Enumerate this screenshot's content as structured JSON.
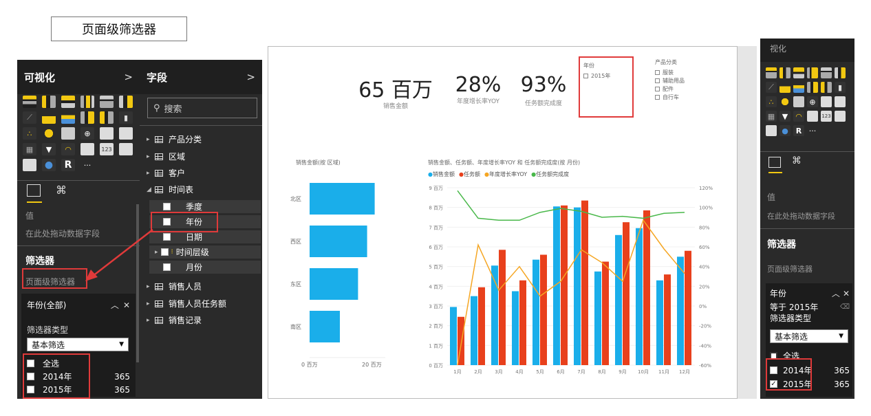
{
  "page_title": "页面级筛选器",
  "viz_panel": {
    "title": "可视化",
    "chevron": ">",
    "value_label": "值",
    "drop_hint": "在此处拖动数据字段",
    "filters_title": "筛选器",
    "page_filter_label": "页面级筛选器",
    "filter_card": {
      "title": "年份(全部)",
      "type_label": "筛选器类型",
      "type_value": "基本筛选",
      "items": [
        {
          "label": "全选",
          "count": ""
        },
        {
          "label": "2014年",
          "count": "365"
        },
        {
          "label": "2015年",
          "count": "365"
        }
      ]
    }
  },
  "fields_panel": {
    "title": "字段",
    "chevron": ">",
    "search_placeholder": "搜索",
    "tables": [
      "产品分类",
      "区域",
      "客户",
      "时间表"
    ],
    "time_fields": [
      "季度",
      "年份",
      "日期",
      "时间层级",
      "月份"
    ],
    "tables_after": [
      "销售人员",
      "销售人员任务额",
      "销售记录"
    ]
  },
  "report": {
    "kpis": [
      {
        "value": "65 百万",
        "label": "销售金额"
      },
      {
        "value": "28%",
        "label": "年度增长率YOY"
      },
      {
        "value": "93%",
        "label": "任务额完成度"
      }
    ],
    "year_slicer": {
      "title": "年份",
      "items": [
        "2015年"
      ]
    },
    "category_slicer": {
      "title": "产品分类",
      "items": [
        "服装",
        "辅助用品",
        "配件",
        "自行车"
      ]
    },
    "bar_title": "销售金额(按 区域)",
    "combo_title": "销售金额、任务额、年度增长率YOY 和 任务额完成度(按 月份)",
    "legend": [
      {
        "name": "销售金额",
        "color": "#1aaeea"
      },
      {
        "name": "任务额",
        "color": "#e8401c"
      },
      {
        "name": "年度增长率YOY",
        "color": "#f5a623"
      },
      {
        "name": "任务额完成度",
        "color": "#49b84a"
      }
    ]
  },
  "chart_data": [
    {
      "type": "bar",
      "title": "销售金额(按 区域)",
      "categories": [
        "北区",
        "西区",
        "东区",
        "南区"
      ],
      "values": [
        21.5,
        19,
        16,
        10
      ],
      "xlim": [
        0,
        25
      ],
      "x_ticks": [
        "0 百万",
        "20 百万"
      ],
      "orientation": "horizontal"
    },
    {
      "type": "bar",
      "title": "销售金额、任务额、年度增长率YOY 和 任务额完成度(按 月份)",
      "categories": [
        "1月",
        "2月",
        "3月",
        "4月",
        "5月",
        "6月",
        "7月",
        "8月",
        "9月",
        "10月",
        "11月",
        "12月"
      ],
      "y_ticks": [
        "0 百万",
        "1 百万",
        "2 百万",
        "3 百万",
        "4 百万",
        "5 百万",
        "6 百万",
        "7 百万",
        "8 百万",
        "9 百万"
      ],
      "y2_ticks": [
        "-60%",
        "-40%",
        "-20%",
        "0%",
        "20%",
        "40%",
        "60%",
        "80%",
        "100%",
        "120%"
      ],
      "ylim": [
        0,
        9
      ],
      "y2lim": [
        -60,
        120
      ],
      "series": [
        {
          "name": "销售金额",
          "kind": "bar",
          "values": [
            2.95,
            3.5,
            5.05,
            3.75,
            5.35,
            8.05,
            8.0,
            4.75,
            6.6,
            6.95,
            4.3,
            5.5
          ]
        },
        {
          "name": "任务额",
          "kind": "bar",
          "values": [
            2.45,
            3.95,
            5.85,
            4.3,
            5.6,
            8.1,
            8.35,
            5.25,
            7.25,
            7.85,
            4.6,
            5.8
          ]
        },
        {
          "name": "年度增长率YOY",
          "kind": "line",
          "values": [
            -60,
            62,
            16,
            40,
            10,
            25,
            57,
            44,
            25,
            87,
            58,
            33
          ]
        },
        {
          "name": "任务额完成度",
          "kind": "line",
          "values": [
            117,
            89,
            87,
            87,
            95,
            99,
            96,
            90,
            91,
            89,
            94,
            95
          ]
        }
      ]
    }
  ],
  "right_panel": {
    "header_fragment": "视化",
    "value_label": "值",
    "drop_hint": "在此处拖动数据字段",
    "filters_title": "筛选器",
    "page_filter_label": "页面级筛选器",
    "filter_card": {
      "title": "年份",
      "condition": "等于 2015年",
      "type_label": "筛选器类型",
      "type_value": "基本筛选",
      "items": [
        {
          "label": "全选",
          "count": ""
        },
        {
          "label": "2014年",
          "count": "365"
        },
        {
          "label": "2015年",
          "count": "365"
        }
      ]
    }
  }
}
